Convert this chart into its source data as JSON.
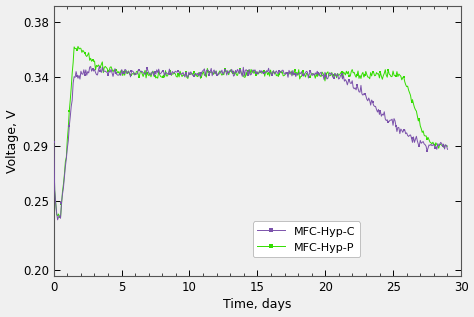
{
  "title": "",
  "xlabel": "Time, days",
  "ylabel": "Voltage, V",
  "xlim": [
    0,
    30
  ],
  "ylim": [
    0.195,
    0.392
  ],
  "yticks": [
    0.2,
    0.25,
    0.29,
    0.34,
    0.38
  ],
  "xticks": [
    0,
    5,
    10,
    15,
    20,
    25,
    30
  ],
  "color_C": "#7B52AB",
  "color_P": "#33DD00",
  "legend_labels": [
    "MFC-Hyp-C",
    "MFC-Hyp-P"
  ],
  "background": "#f0f0f0",
  "figsize": [
    4.74,
    3.17
  ],
  "dpi": 100
}
